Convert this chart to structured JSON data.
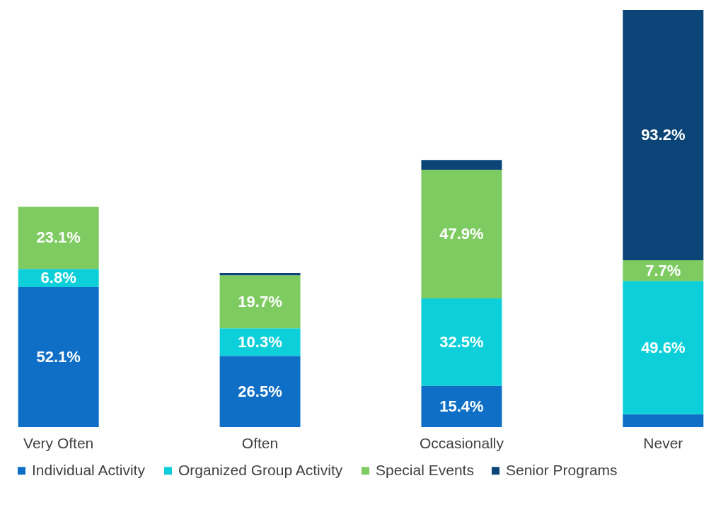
{
  "chart_data": {
    "type": "bar",
    "stacked": true,
    "categories": [
      "Very Often",
      "Often",
      "Occasionally",
      "Never"
    ],
    "series": [
      {
        "name": "Individual Activity",
        "color": "#0f6fc6",
        "values": [
          52.1,
          26.5,
          15.4,
          4.8
        ],
        "value_labels": [
          "52.1%",
          "26.5%",
          "15.4%",
          null
        ]
      },
      {
        "name": "Organized Group Activity",
        "color": "#0dcfda",
        "values": [
          6.8,
          10.3,
          32.5,
          49.6
        ],
        "value_labels": [
          "6.8%",
          "10.3%",
          "32.5%",
          "49.6%"
        ]
      },
      {
        "name": "Special Events",
        "color": "#7ecb62",
        "values": [
          23.1,
          19.7,
          47.9,
          7.7
        ],
        "value_labels": [
          "23.1%",
          "19.7%",
          "47.9%",
          "7.7%"
        ]
      },
      {
        "name": "Senior Programs",
        "color": "#0b4477",
        "values": [
          null,
          0.9,
          3.6,
          93.2
        ],
        "value_labels": [
          null,
          null,
          null,
          "93.2%"
        ]
      }
    ],
    "legend": "bottom"
  }
}
